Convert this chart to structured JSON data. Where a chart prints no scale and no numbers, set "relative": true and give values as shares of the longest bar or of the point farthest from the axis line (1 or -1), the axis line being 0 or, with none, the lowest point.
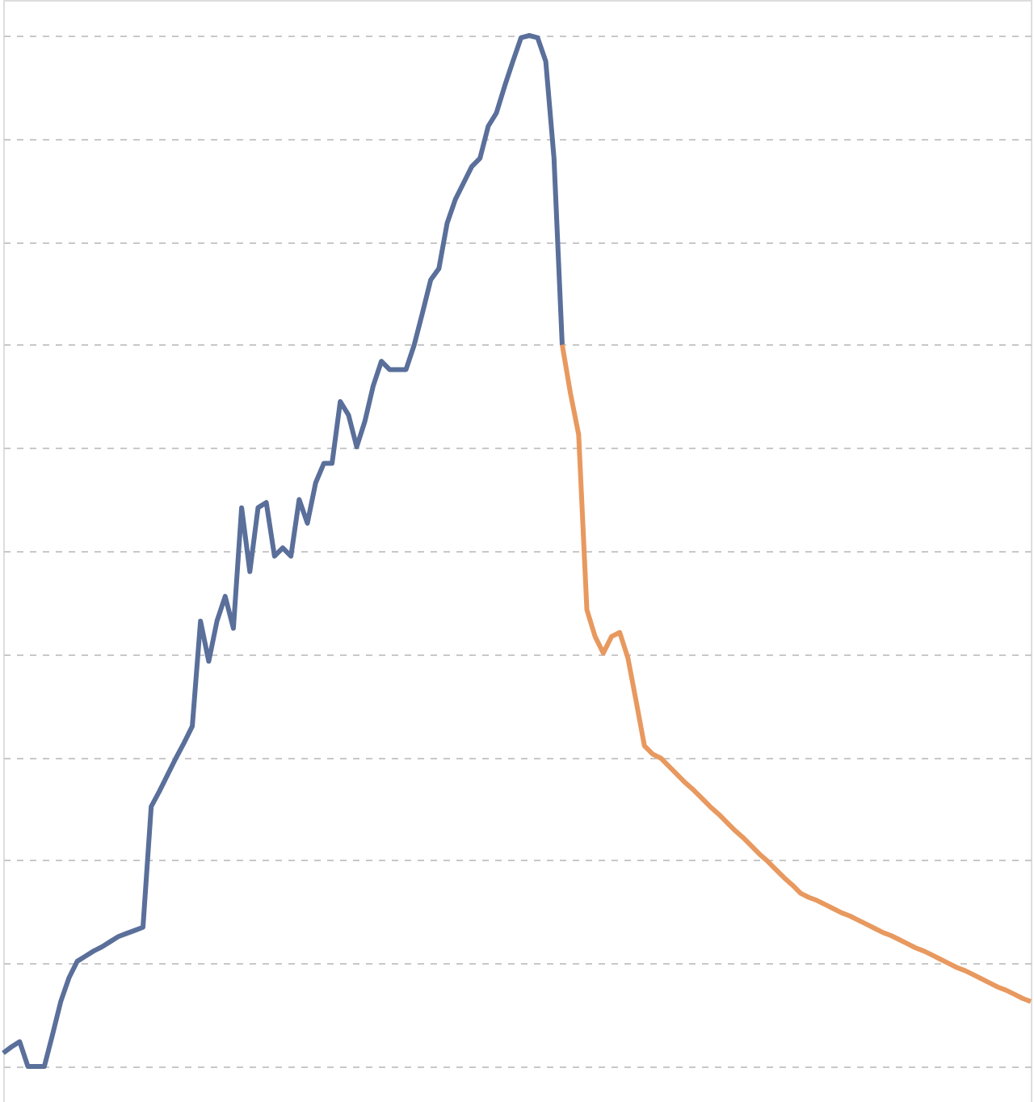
{
  "chart_data": {
    "type": "line",
    "relative": true,
    "grid": "y",
    "line_style": "solid",
    "marker": "none",
    "categories": [
      null,
      null,
      null,
      null,
      null,
      null,
      null,
      null,
      null,
      null,
      null,
      null,
      null,
      null,
      null,
      null,
      null,
      null,
      null,
      null,
      null,
      null,
      null,
      null,
      null,
      null,
      null,
      null,
      null,
      null,
      null,
      null,
      null,
      null,
      null,
      null,
      null,
      null,
      null,
      null,
      null,
      null,
      null,
      null,
      null,
      null,
      null,
      null,
      null,
      null,
      null,
      null,
      null,
      null,
      null,
      null,
      null,
      null,
      null,
      null,
      null,
      null,
      null,
      null,
      null,
      null,
      null,
      null,
      null,
      null,
      null,
      null,
      null,
      null,
      null,
      null,
      null,
      null,
      null,
      null,
      null,
      null,
      null,
      null,
      null,
      null,
      null,
      null,
      null,
      null,
      null,
      null,
      null,
      null,
      null,
      null,
      null,
      null,
      null,
      null,
      null,
      null,
      null,
      null,
      null,
      null,
      null,
      null,
      null,
      null,
      null,
      null,
      null,
      null,
      null,
      null,
      null,
      null,
      null,
      null,
      null,
      null,
      null,
      null,
      null,
      null
    ],
    "series": [
      {
        "color": "#5a6f9a",
        "values": [
          0.013,
          0.019,
          0.024,
          0,
          0,
          0,
          0.031,
          0.063,
          0.086,
          0.102,
          0.107,
          0.112,
          0.116,
          0.121,
          0.126,
          0.129,
          0.132,
          0.135,
          0.252,
          0.267,
          0.283,
          0.299,
          0.314,
          0.33,
          0.432,
          0.393,
          0.432,
          0.456,
          0.425,
          0.542,
          0.48,
          0.542,
          0.547,
          0.495,
          0.503,
          0.495,
          0.55,
          0.527,
          0.566,
          0.585,
          0.585,
          0.645,
          0.632,
          0.601,
          0.626,
          0.66,
          0.684,
          0.676,
          0.676,
          0.676,
          0.7,
          0.731,
          0.763,
          0.774,
          0.818,
          0.841,
          0.857,
          0.873,
          0.881,
          0.912,
          0.925,
          0.951,
          0.975,
          0.998,
          1.0,
          0.998,
          0.975,
          0.881,
          0.7,
          null,
          null,
          null,
          null,
          null,
          null,
          null,
          null,
          null,
          null,
          null,
          null,
          null,
          null,
          null,
          null,
          null,
          null,
          null,
          null,
          null,
          null,
          null,
          null,
          null,
          null,
          null,
          null,
          null,
          null,
          null,
          null,
          null,
          null,
          null,
          null,
          null,
          null,
          null,
          null,
          null,
          null,
          null,
          null,
          null,
          null,
          null,
          null,
          null,
          null,
          null,
          null,
          null,
          null,
          null,
          null,
          null
        ]
      },
      {
        "color": "#e8995f",
        "values": [
          null,
          null,
          null,
          null,
          null,
          null,
          null,
          null,
          null,
          null,
          null,
          null,
          null,
          null,
          null,
          null,
          null,
          null,
          null,
          null,
          null,
          null,
          null,
          null,
          null,
          null,
          null,
          null,
          null,
          null,
          null,
          null,
          null,
          null,
          null,
          null,
          null,
          null,
          null,
          null,
          null,
          null,
          null,
          null,
          null,
          null,
          null,
          null,
          null,
          null,
          null,
          null,
          null,
          null,
          null,
          null,
          null,
          null,
          null,
          null,
          null,
          null,
          null,
          null,
          null,
          null,
          null,
          null,
          0.7,
          0.653,
          0.613,
          0.443,
          0.417,
          0.401,
          0.417,
          0.421,
          0.396,
          0.354,
          0.311,
          0.303,
          0.299,
          0.291,
          0.283,
          0.275,
          0.268,
          0.26,
          0.252,
          0.245,
          0.237,
          0.229,
          0.222,
          0.214,
          0.206,
          0.199,
          0.191,
          0.183,
          0.176,
          0.168,
          0.164,
          0.161,
          0.157,
          0.153,
          0.149,
          0.146,
          0.142,
          0.138,
          0.134,
          0.13,
          0.127,
          0.123,
          0.119,
          0.115,
          0.112,
          0.108,
          0.104,
          0.1,
          0.096,
          0.093,
          0.089,
          0.085,
          0.081,
          0.077,
          0.074,
          0.07,
          0.066,
          0.063
        ]
      }
    ]
  }
}
